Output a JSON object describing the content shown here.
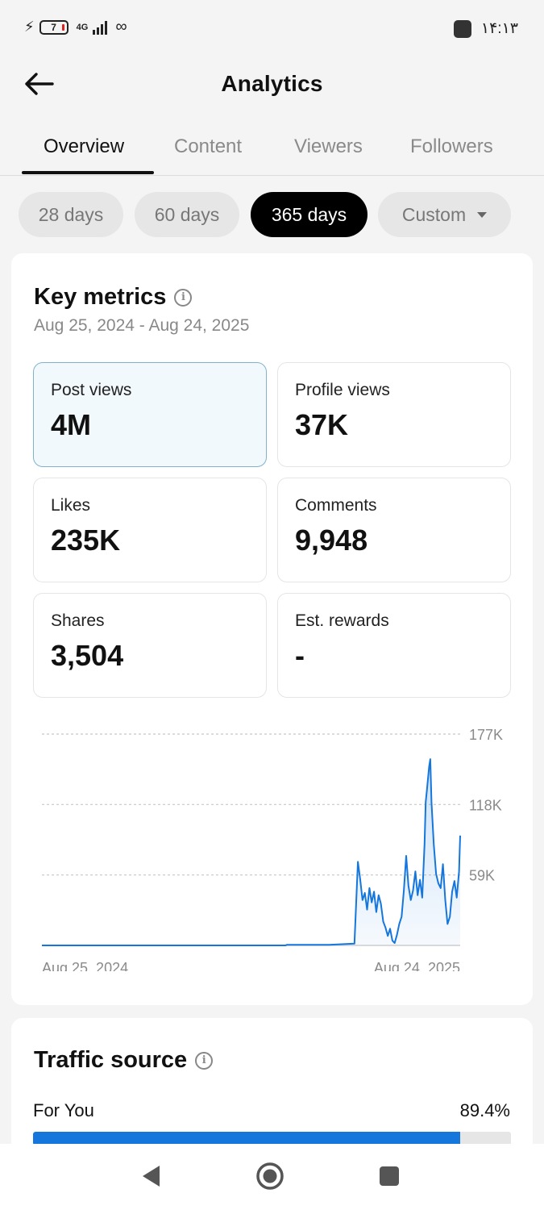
{
  "status_bar": {
    "battery": "7",
    "network": "4G",
    "time": "۱۴:۱۳"
  },
  "header": {
    "title": "Analytics"
  },
  "tabs": [
    {
      "label": "Overview",
      "active": true
    },
    {
      "label": "Content",
      "active": false
    },
    {
      "label": "Viewers",
      "active": false
    },
    {
      "label": "Followers",
      "active": false
    }
  ],
  "ranges": [
    {
      "label": "28 days",
      "active": false
    },
    {
      "label": "60 days",
      "active": false
    },
    {
      "label": "365 days",
      "active": true
    },
    {
      "label": "Custom",
      "active": false
    }
  ],
  "key_metrics": {
    "title": "Key metrics",
    "date_range": "Aug 25, 2024 - Aug 24, 2025",
    "metrics": [
      {
        "label": "Post views",
        "value": "4M",
        "selected": true
      },
      {
        "label": "Profile views",
        "value": "37K",
        "selected": false
      },
      {
        "label": "Likes",
        "value": "235K",
        "selected": false
      },
      {
        "label": "Comments",
        "value": "9,948",
        "selected": false
      },
      {
        "label": "Shares",
        "value": "3,504",
        "selected": false
      },
      {
        "label": "Est. rewards",
        "value": "-",
        "selected": false
      }
    ]
  },
  "chart_data": {
    "type": "area",
    "x_start_label": "Aug 25, 2024",
    "x_end_label": "Aug 24, 2025",
    "y_ticks": [
      {
        "value": 177000,
        "label": "177K"
      },
      {
        "value": 118000,
        "label": "118K"
      },
      {
        "value": 59000,
        "label": "59K"
      }
    ],
    "ylim": [
      0,
      177000
    ],
    "grid": true,
    "color": "#1576dc",
    "x_unit": "day index (0 = Aug 25, 2024, 364 = Aug 24, 2025)",
    "points": [
      [
        0,
        0
      ],
      [
        212,
        0
      ],
      [
        213,
        500
      ],
      [
        250,
        500
      ],
      [
        272,
        1500
      ],
      [
        275,
        70000
      ],
      [
        277,
        55000
      ],
      [
        279,
        38000
      ],
      [
        281,
        44000
      ],
      [
        283,
        30000
      ],
      [
        285,
        48000
      ],
      [
        287,
        36000
      ],
      [
        289,
        45000
      ],
      [
        291,
        28000
      ],
      [
        293,
        42000
      ],
      [
        295,
        35000
      ],
      [
        297,
        20000
      ],
      [
        299,
        15000
      ],
      [
        301,
        8000
      ],
      [
        303,
        14000
      ],
      [
        305,
        4000
      ],
      [
        307,
        2000
      ],
      [
        309,
        9000
      ],
      [
        311,
        18000
      ],
      [
        313,
        24000
      ],
      [
        315,
        46000
      ],
      [
        317,
        75000
      ],
      [
        319,
        50000
      ],
      [
        321,
        38000
      ],
      [
        323,
        46000
      ],
      [
        325,
        62000
      ],
      [
        327,
        42000
      ],
      [
        329,
        55000
      ],
      [
        331,
        40000
      ],
      [
        333,
        85000
      ],
      [
        334,
        120000
      ],
      [
        335,
        130000
      ],
      [
        337,
        150000
      ],
      [
        338,
        156000
      ],
      [
        339,
        120000
      ],
      [
        341,
        85000
      ],
      [
        343,
        60000
      ],
      [
        345,
        52000
      ],
      [
        347,
        48000
      ],
      [
        349,
        68000
      ],
      [
        351,
        38000
      ],
      [
        353,
        18000
      ],
      [
        355,
        24000
      ],
      [
        357,
        45000
      ],
      [
        359,
        54000
      ],
      [
        361,
        40000
      ],
      [
        363,
        62000
      ],
      [
        364,
        92000
      ]
    ]
  },
  "traffic_source": {
    "title": "Traffic source",
    "rows": [
      {
        "label": "For You",
        "value_text": "89.4%",
        "fraction": 0.894
      }
    ]
  }
}
